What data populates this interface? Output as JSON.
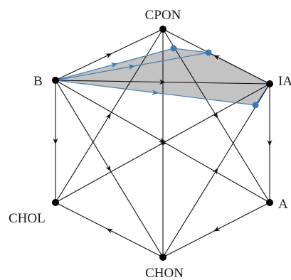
{
  "diagram": {
    "node_labels": {
      "cpon": "CPON",
      "b": "B",
      "ia": "IA",
      "chol": "CHOL",
      "a": "A",
      "chon": "CHON"
    },
    "colors": {
      "edge": "#111111",
      "node": "#000000",
      "highlight_fill": "#b8b8b8",
      "highlight_edge": "#4a7fb5",
      "highlight_node": "#3f78b5"
    },
    "edges": [
      {
        "from": "b",
        "to": "cpon"
      },
      {
        "from": "ia",
        "to": "cpon"
      },
      {
        "from": "b",
        "to": "chol"
      },
      {
        "from": "ia",
        "to": "a"
      },
      {
        "from": "a",
        "to": "chon"
      },
      {
        "from": "chon",
        "to": "chol"
      },
      {
        "from": "cpon",
        "to": "chon"
      },
      {
        "from": "b",
        "to": "ia"
      },
      {
        "from": "b",
        "to": "a"
      },
      {
        "from": "b",
        "to": "chon"
      },
      {
        "from": "ia",
        "to": "chol"
      },
      {
        "from": "chon",
        "to": "ia"
      },
      {
        "from": "chol",
        "to": "cpon"
      },
      {
        "from": "cpon",
        "to": "a"
      }
    ],
    "highlight_edges": [
      {
        "from": "b",
        "to": "h1"
      },
      {
        "from": "b",
        "to": "h2"
      },
      {
        "from": "b",
        "to": "h3"
      }
    ]
  }
}
